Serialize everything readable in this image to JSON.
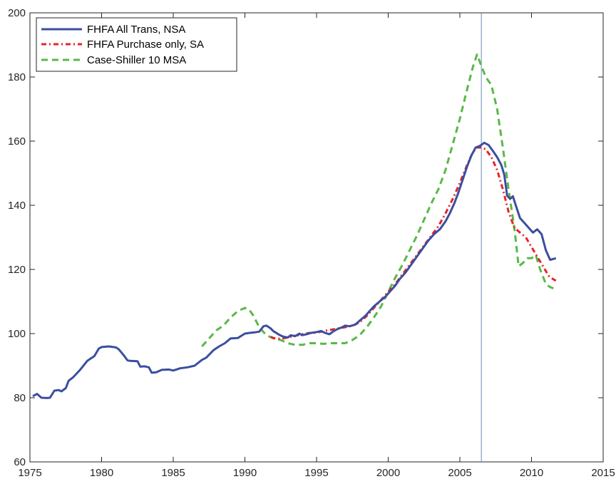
{
  "chart_data": {
    "type": "line",
    "title": "",
    "xlabel": "",
    "ylabel": "",
    "xlim": [
      1975,
      2015
    ],
    "ylim": [
      60,
      200
    ],
    "xticks": [
      1975,
      1980,
      1985,
      1990,
      1995,
      2000,
      2005,
      2010,
      2015
    ],
    "yticks": [
      60,
      80,
      100,
      120,
      140,
      160,
      180,
      200
    ],
    "xtick_labels": [
      "1975",
      "1980",
      "1985",
      "1990",
      "1995",
      "2000",
      "2005",
      "2010",
      "2015"
    ],
    "ytick_labels": [
      "60",
      "80",
      "100",
      "120",
      "140",
      "160",
      "180",
      "200"
    ],
    "grid": false,
    "legend_position": "top-left",
    "vline": {
      "x": 2006.5,
      "color": "#6a8cb8"
    },
    "series": [
      {
        "name": "FHFA All Trans, NSA",
        "color": "#3a4fa0",
        "style": "solid",
        "points": [
          [
            1975.2,
            80.5
          ],
          [
            1975.5,
            81.2
          ],
          [
            1975.8,
            80.0
          ],
          [
            1976.2,
            79.9
          ],
          [
            1976.4,
            80.0
          ],
          [
            1976.7,
            82.2
          ],
          [
            1977.0,
            82.4
          ],
          [
            1977.2,
            82.0
          ],
          [
            1977.5,
            83.0
          ],
          [
            1977.7,
            85.3
          ],
          [
            1978.0,
            86.3
          ],
          [
            1978.5,
            88.7
          ],
          [
            1979.0,
            91.5
          ],
          [
            1979.5,
            93.0
          ],
          [
            1979.8,
            95.3
          ],
          [
            1980.0,
            95.8
          ],
          [
            1980.5,
            96.0
          ],
          [
            1981.0,
            95.7
          ],
          [
            1981.2,
            95.1
          ],
          [
            1981.5,
            93.5
          ],
          [
            1981.8,
            91.7
          ],
          [
            1982.0,
            91.5
          ],
          [
            1982.5,
            91.4
          ],
          [
            1982.7,
            89.7
          ],
          [
            1983.0,
            89.8
          ],
          [
            1983.3,
            89.5
          ],
          [
            1983.5,
            87.8
          ],
          [
            1983.8,
            87.9
          ],
          [
            1984.2,
            88.7
          ],
          [
            1984.7,
            88.8
          ],
          [
            1985.0,
            88.5
          ],
          [
            1985.5,
            89.2
          ],
          [
            1986.0,
            89.5
          ],
          [
            1986.5,
            90.0
          ],
          [
            1987.0,
            91.8
          ],
          [
            1987.3,
            92.5
          ],
          [
            1987.8,
            94.8
          ],
          [
            1988.2,
            96.0
          ],
          [
            1988.6,
            97.0
          ],
          [
            1989.0,
            98.5
          ],
          [
            1989.5,
            98.6
          ],
          [
            1990.0,
            100.0
          ],
          [
            1990.3,
            100.2
          ],
          [
            1990.7,
            100.4
          ],
          [
            1991.0,
            100.6
          ],
          [
            1991.3,
            102.3
          ],
          [
            1991.5,
            102.5
          ],
          [
            1991.8,
            101.6
          ],
          [
            1992.0,
            100.7
          ],
          [
            1992.2,
            100.2
          ],
          [
            1992.4,
            99.6
          ],
          [
            1992.7,
            99.0
          ],
          [
            1993.0,
            98.8
          ],
          [
            1993.2,
            99.5
          ],
          [
            1993.5,
            99.2
          ],
          [
            1993.8,
            100.0
          ],
          [
            1994.0,
            99.5
          ],
          [
            1994.3,
            99.8
          ],
          [
            1994.6,
            100.2
          ],
          [
            1995.0,
            100.5
          ],
          [
            1995.3,
            100.8
          ],
          [
            1995.6,
            100.2
          ],
          [
            1995.9,
            99.8
          ],
          [
            1996.2,
            100.8
          ],
          [
            1996.5,
            101.5
          ],
          [
            1996.8,
            102.0
          ],
          [
            1997.0,
            102.5
          ],
          [
            1997.3,
            102.3
          ],
          [
            1997.7,
            102.8
          ],
          [
            1998.0,
            104.0
          ],
          [
            1998.4,
            105.5
          ],
          [
            1998.7,
            107.0
          ],
          [
            1999.0,
            108.5
          ],
          [
            1999.4,
            110.0
          ],
          [
            1999.8,
            111.5
          ],
          [
            2000.2,
            113.5
          ],
          [
            2000.5,
            115.0
          ],
          [
            2000.8,
            117.0
          ],
          [
            2001.2,
            119.0
          ],
          [
            2001.6,
            121.5
          ],
          [
            2002.0,
            124.0
          ],
          [
            2002.4,
            126.5
          ],
          [
            2002.8,
            129.0
          ],
          [
            2003.2,
            131.0
          ],
          [
            2003.6,
            132.5
          ],
          [
            2004.0,
            135.0
          ],
          [
            2004.3,
            137.5
          ],
          [
            2004.6,
            140.5
          ],
          [
            2004.9,
            144.0
          ],
          [
            2005.2,
            148.0
          ],
          [
            2005.5,
            152.0
          ],
          [
            2005.8,
            155.5
          ],
          [
            2006.1,
            158.0
          ],
          [
            2006.4,
            158.5
          ],
          [
            2006.7,
            159.5
          ],
          [
            2007.0,
            158.8
          ],
          [
            2007.3,
            157.0
          ],
          [
            2007.6,
            155.0
          ],
          [
            2007.9,
            152.5
          ],
          [
            2008.1,
            149.5
          ],
          [
            2008.3,
            143.0
          ],
          [
            2008.5,
            142.0
          ],
          [
            2008.7,
            142.8
          ],
          [
            2008.9,
            140.0
          ],
          [
            2009.2,
            136.0
          ],
          [
            2009.5,
            134.5
          ],
          [
            2009.8,
            133.0
          ],
          [
            2010.1,
            131.5
          ],
          [
            2010.4,
            132.5
          ],
          [
            2010.7,
            131.0
          ],
          [
            2011.0,
            126.0
          ],
          [
            2011.3,
            123.0
          ],
          [
            2011.7,
            123.5
          ]
        ]
      },
      {
        "name": "FHFA Purchase only, SA",
        "color": "#e8222a",
        "style": "dashdot",
        "points": [
          [
            1991.8,
            99.0
          ],
          [
            1992.0,
            98.6
          ],
          [
            1992.5,
            98.3
          ],
          [
            1993.0,
            98.8
          ],
          [
            1993.5,
            99.3
          ],
          [
            1994.0,
            99.8
          ],
          [
            1994.5,
            100.2
          ],
          [
            1995.0,
            100.3
          ],
          [
            1995.5,
            100.8
          ],
          [
            1996.0,
            101.2
          ],
          [
            1996.5,
            101.6
          ],
          [
            1997.0,
            102.0
          ],
          [
            1997.5,
            102.5
          ],
          [
            1998.0,
            103.5
          ],
          [
            1998.5,
            105.5
          ],
          [
            1999.0,
            108.0
          ],
          [
            1999.5,
            110.5
          ],
          [
            2000.0,
            113.0
          ],
          [
            2000.5,
            115.5
          ],
          [
            2001.0,
            118.5
          ],
          [
            2001.5,
            121.5
          ],
          [
            2002.0,
            124.5
          ],
          [
            2002.5,
            127.5
          ],
          [
            2003.0,
            130.5
          ],
          [
            2003.5,
            133.5
          ],
          [
            2004.0,
            137.5
          ],
          [
            2004.5,
            142.0
          ],
          [
            2005.0,
            147.0
          ],
          [
            2005.5,
            152.5
          ],
          [
            2005.9,
            156.5
          ],
          [
            2006.2,
            158.0
          ],
          [
            2006.5,
            158.0
          ],
          [
            2006.8,
            157.5
          ],
          [
            2007.2,
            155.0
          ],
          [
            2007.6,
            151.0
          ],
          [
            2008.0,
            145.0
          ],
          [
            2008.4,
            138.0
          ],
          [
            2008.8,
            133.0
          ],
          [
            2009.2,
            131.5
          ],
          [
            2009.6,
            130.0
          ],
          [
            2010.0,
            127.0
          ],
          [
            2010.4,
            124.0
          ],
          [
            2010.8,
            121.0
          ],
          [
            2011.2,
            118.0
          ],
          [
            2011.5,
            117.0
          ],
          [
            2011.7,
            116.5
          ]
        ]
      },
      {
        "name": "Case-Shiller 10 MSA",
        "color": "#5ab848",
        "style": "dashed",
        "points": [
          [
            1987.0,
            96.0
          ],
          [
            1987.5,
            98.5
          ],
          [
            1988.0,
            101.0
          ],
          [
            1988.5,
            102.5
          ],
          [
            1989.0,
            105.0
          ],
          [
            1989.5,
            107.0
          ],
          [
            1990.0,
            108.0
          ],
          [
            1990.3,
            107.5
          ],
          [
            1990.6,
            105.5
          ],
          [
            1991.0,
            102.0
          ],
          [
            1991.5,
            99.5
          ],
          [
            1992.0,
            98.5
          ],
          [
            1992.5,
            98.0
          ],
          [
            1993.0,
            97.0
          ],
          [
            1993.5,
            96.5
          ],
          [
            1994.0,
            96.5
          ],
          [
            1994.5,
            97.0
          ],
          [
            1995.0,
            97.0
          ],
          [
            1995.5,
            96.8
          ],
          [
            1996.0,
            97.0
          ],
          [
            1996.5,
            97.0
          ],
          [
            1997.0,
            97.0
          ],
          [
            1997.5,
            98.0
          ],
          [
            1998.0,
            99.5
          ],
          [
            1998.5,
            102.0
          ],
          [
            1999.0,
            105.0
          ],
          [
            1999.5,
            108.5
          ],
          [
            2000.0,
            113.0
          ],
          [
            2000.5,
            117.5
          ],
          [
            2001.0,
            121.5
          ],
          [
            2001.5,
            126.0
          ],
          [
            2002.0,
            130.5
          ],
          [
            2002.5,
            135.5
          ],
          [
            2003.0,
            140.5
          ],
          [
            2003.5,
            145.0
          ],
          [
            2004.0,
            151.0
          ],
          [
            2004.5,
            159.0
          ],
          [
            2005.0,
            167.0
          ],
          [
            2005.5,
            176.0
          ],
          [
            2005.9,
            183.0
          ],
          [
            2006.2,
            187.0
          ],
          [
            2006.5,
            183.5
          ],
          [
            2006.8,
            180.0
          ],
          [
            2007.2,
            177.5
          ],
          [
            2007.6,
            170.0
          ],
          [
            2008.0,
            158.0
          ],
          [
            2008.4,
            145.0
          ],
          [
            2008.8,
            133.0
          ],
          [
            2009.1,
            121.0
          ],
          [
            2009.4,
            122.0
          ],
          [
            2009.7,
            123.5
          ],
          [
            2010.0,
            123.5
          ],
          [
            2010.3,
            124.5
          ],
          [
            2010.6,
            120.0
          ],
          [
            2011.0,
            115.5
          ],
          [
            2011.3,
            114.5
          ],
          [
            2011.6,
            114.0
          ]
        ]
      }
    ]
  }
}
